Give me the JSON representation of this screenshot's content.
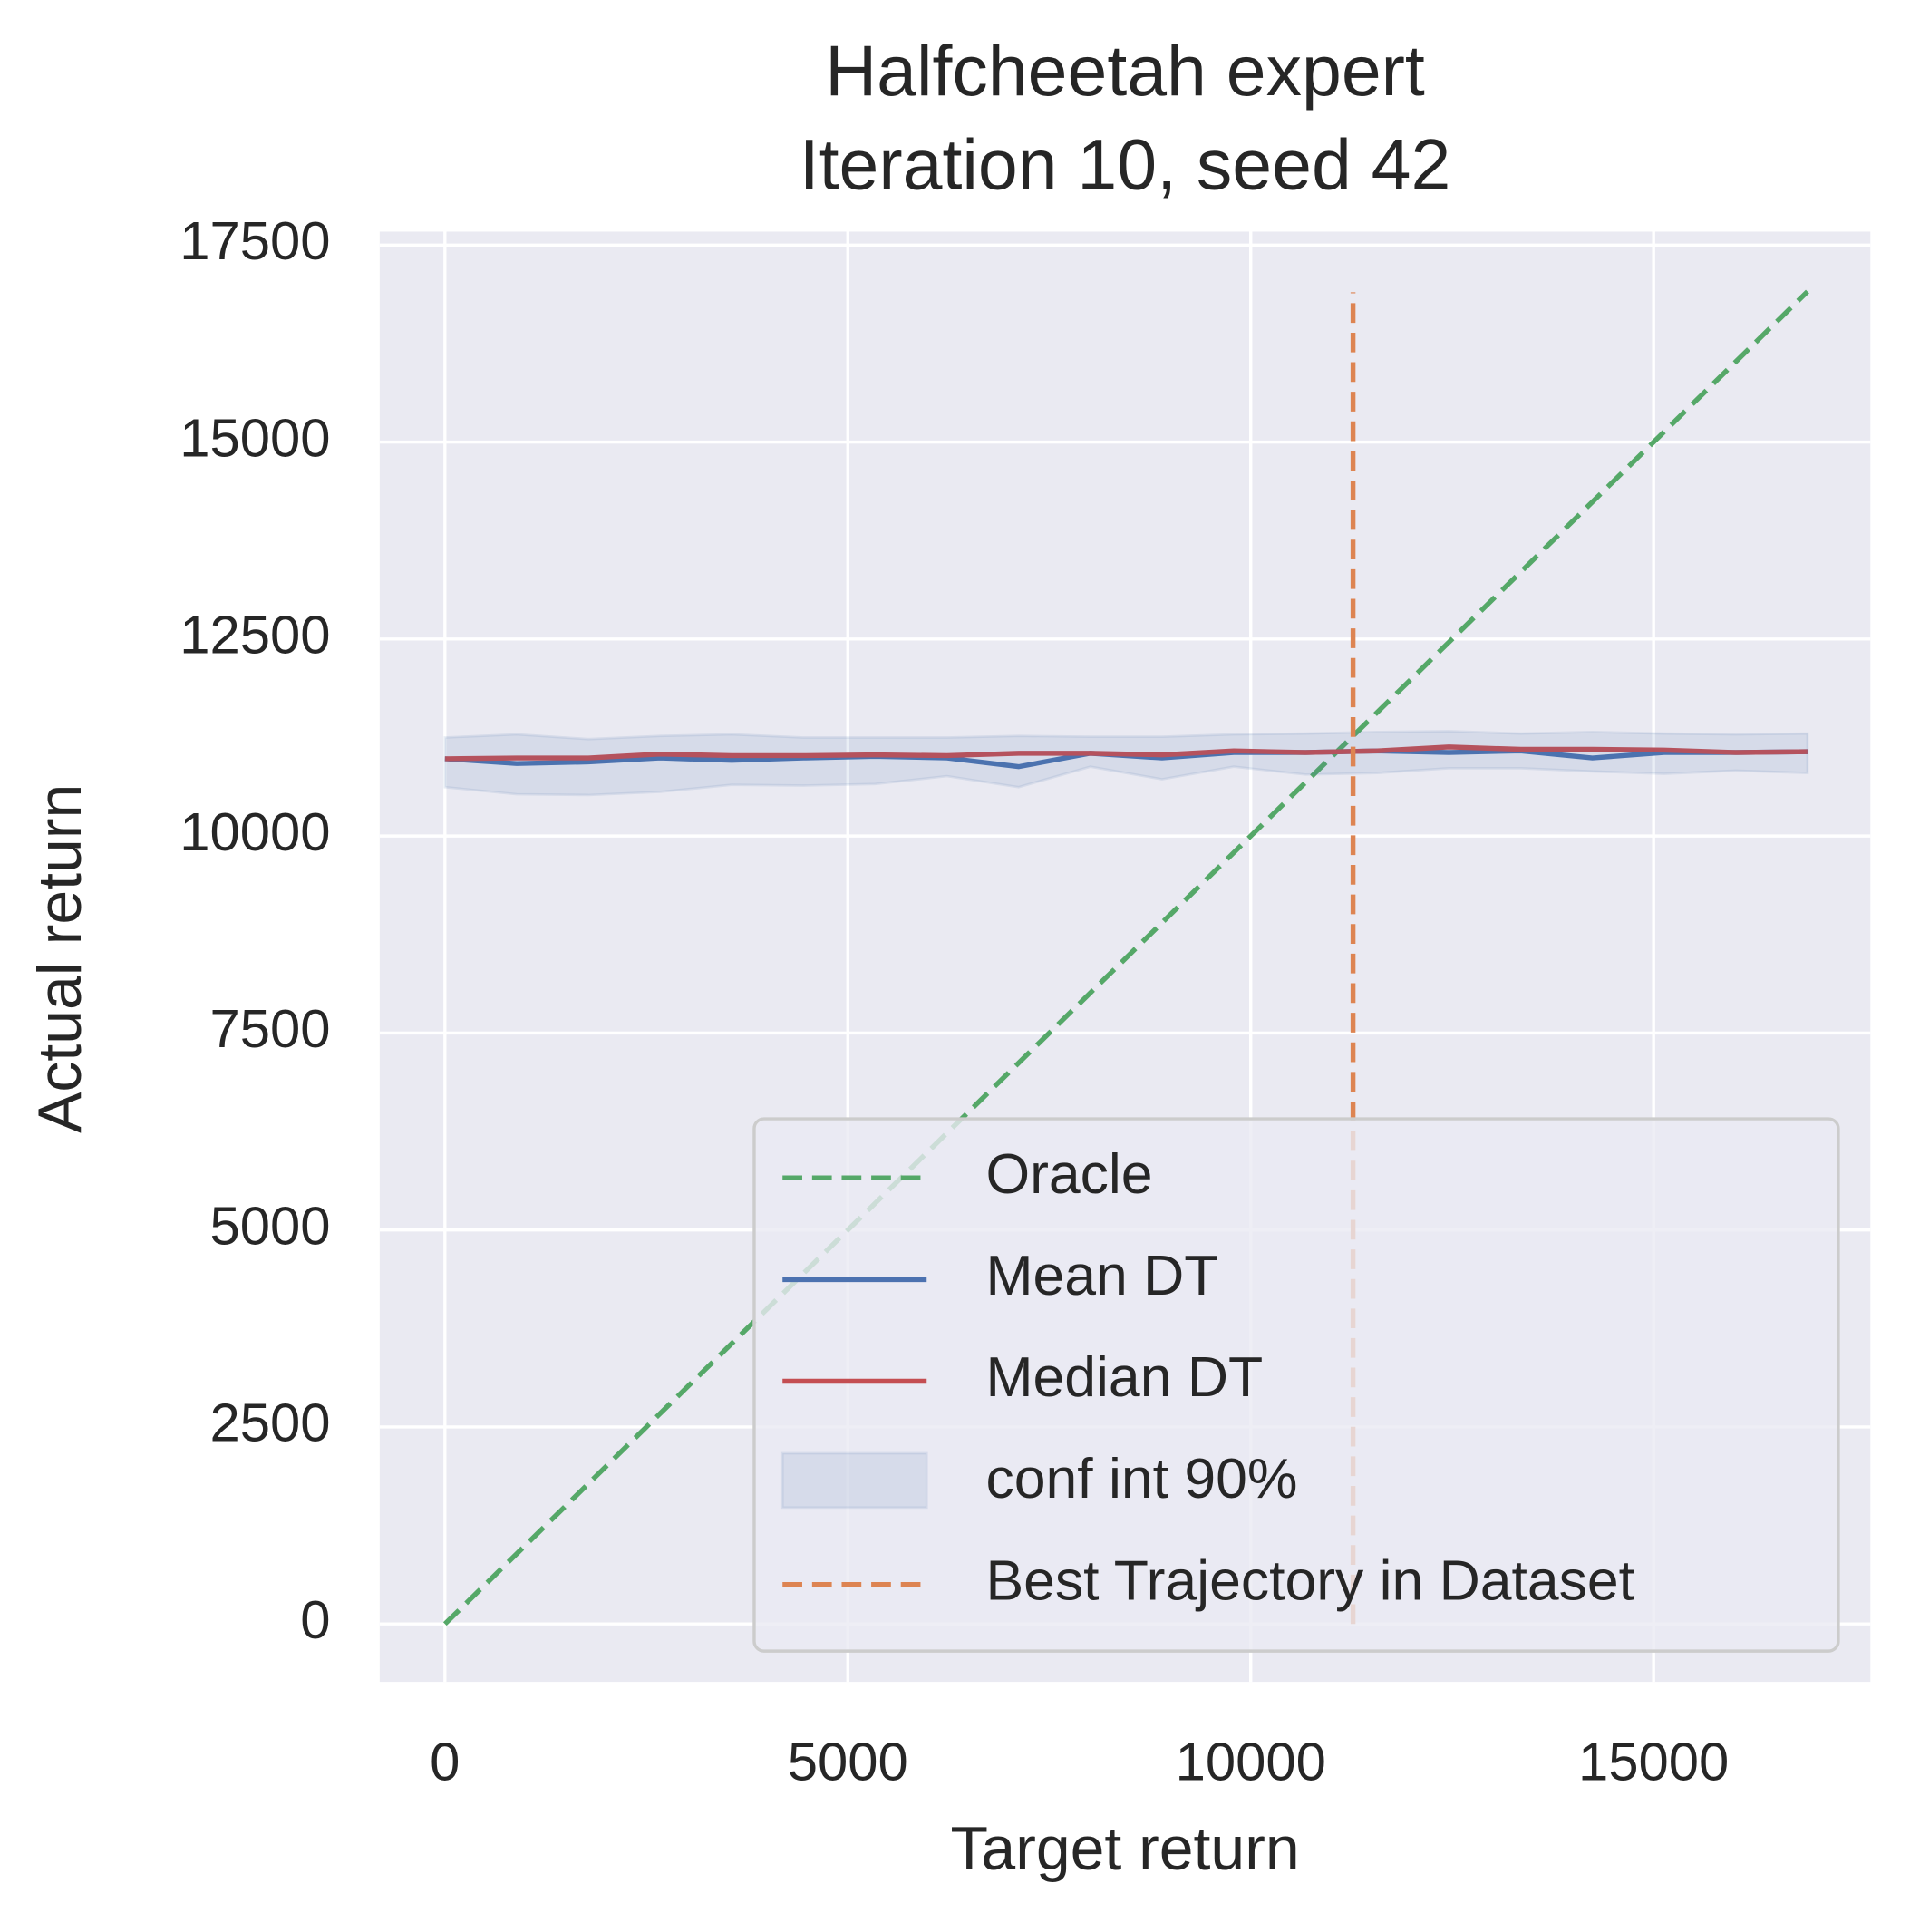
{
  "chart_data": {
    "type": "line",
    "title": "Halfcheetah expert",
    "subtitle": "Iteration 10, seed 42",
    "xlabel": "Target return",
    "ylabel": "Actual return",
    "x": [
      0,
      890,
      1780,
      2670,
      3560,
      4450,
      5340,
      6230,
      7120,
      8010,
      8900,
      9790,
      10680,
      11570,
      12460,
      13350,
      14240,
      15130,
      16020,
      16910
    ],
    "series": [
      {
        "name": "Oracle",
        "color": "#55a868",
        "dashed": true,
        "x": [
          0,
          16910
        ],
        "values": [
          0,
          16910
        ]
      },
      {
        "name": "Mean DT",
        "color": "#4c72b0",
        "values": [
          10980,
          10920,
          10940,
          10990,
          10960,
          10990,
          11010,
          10990,
          10880,
          11050,
          10990,
          11060,
          11060,
          11080,
          11060,
          11080,
          10990,
          11060,
          11060,
          11070
        ]
      },
      {
        "name": "Median DT",
        "color": "#c44e52",
        "values": [
          10980,
          10990,
          10990,
          11040,
          11020,
          11020,
          11030,
          11020,
          11050,
          11050,
          11030,
          11080,
          11060,
          11080,
          11130,
          11100,
          11100,
          11090,
          11060,
          11070
        ]
      },
      {
        "name": "conf int 90%",
        "color": "#4c72b0",
        "band": true,
        "lower": [
          10620,
          10530,
          10520,
          10560,
          10650,
          10640,
          10660,
          10760,
          10620,
          10880,
          10720,
          10880,
          10780,
          10800,
          10860,
          10860,
          10820,
          10790,
          10830,
          10800
        ],
        "upper": [
          11250,
          11290,
          11230,
          11270,
          11290,
          11250,
          11250,
          11250,
          11270,
          11260,
          11260,
          11290,
          11300,
          11320,
          11330,
          11300,
          11320,
          11300,
          11290,
          11300
        ]
      },
      {
        "name": "Best Trajectory in Dataset",
        "color": "#dd8452",
        "dashed": true,
        "x": [
          11270,
          11270
        ],
        "values": [
          0,
          16900
        ]
      }
    ],
    "xlim": [
      -810,
      17690
    ],
    "ylim": [
      -735,
      17670
    ],
    "xticks": [
      0,
      5000,
      10000,
      15000
    ],
    "yticks": [
      0,
      2500,
      5000,
      7500,
      10000,
      12500,
      15000,
      17500
    ],
    "grid": true,
    "legend": "lower right",
    "background": "#eaeaf2"
  }
}
